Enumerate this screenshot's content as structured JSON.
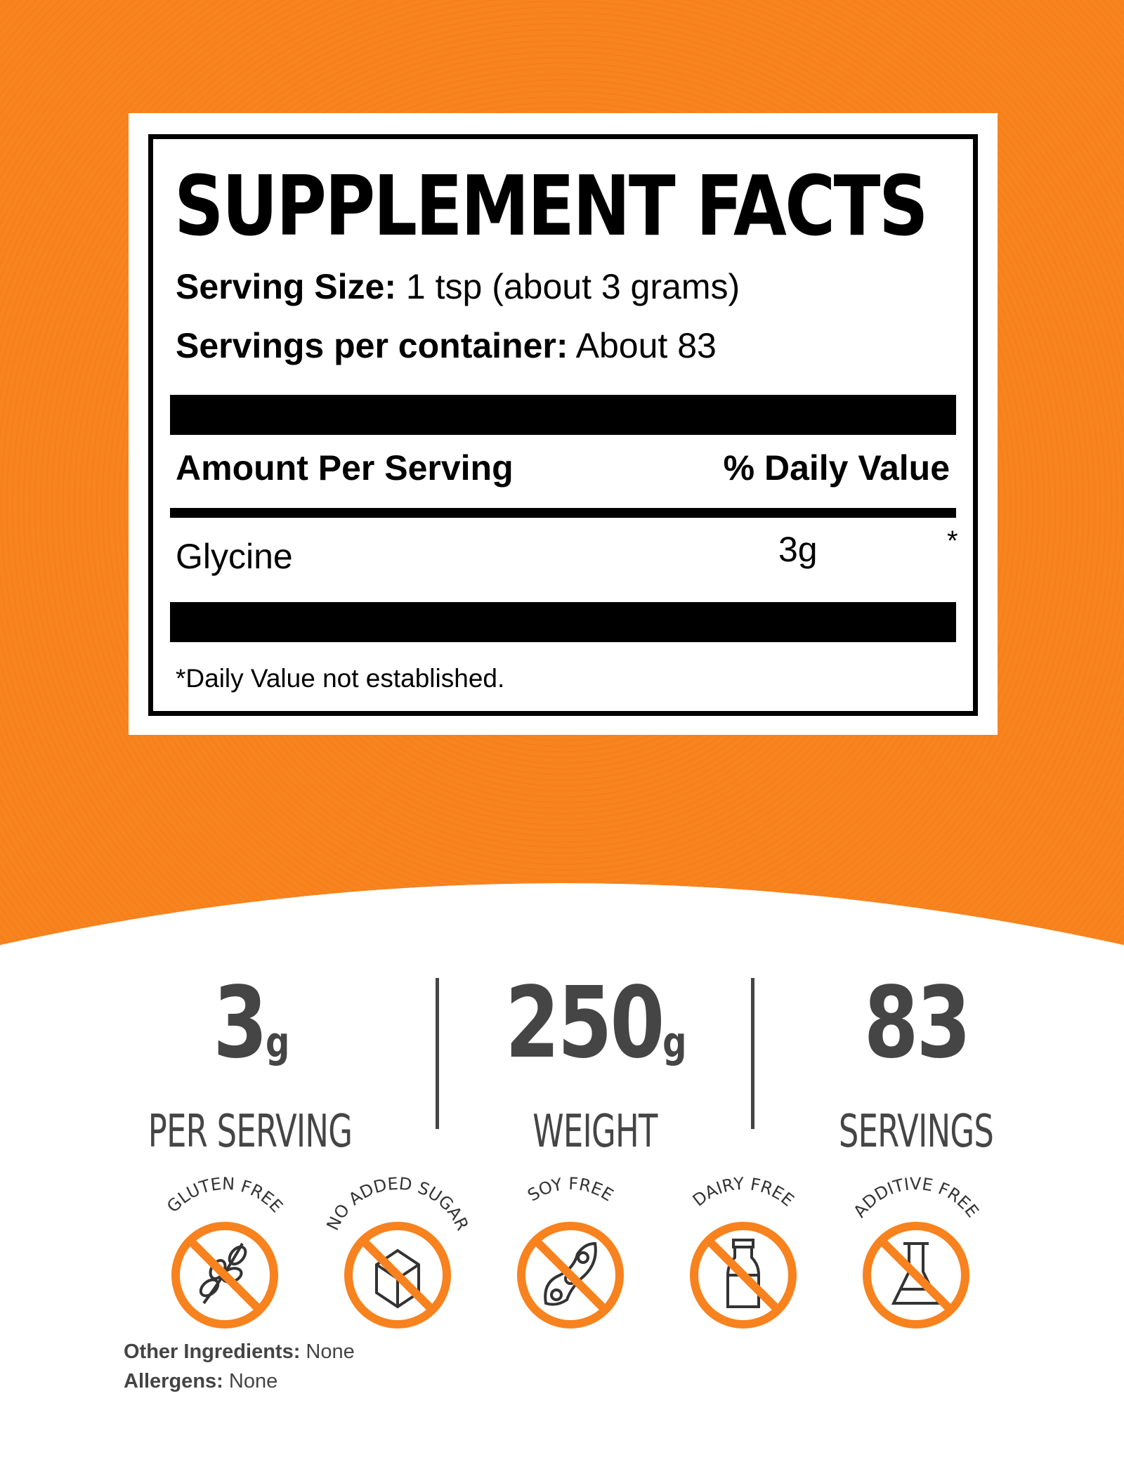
{
  "facts": {
    "title": "SUPPLEMENT FACTS",
    "serving_size_label": "Serving Size:",
    "serving_size_value": "1 tsp (about 3 grams)",
    "servings_label": "Servings per container:",
    "servings_value": "About 83",
    "amount_header": "Amount Per Serving",
    "dv_header": "% Daily Value",
    "ingredients": [
      {
        "name": "Glycine",
        "amount": "3g",
        "dv": "*"
      }
    ],
    "footnote": "*Daily Value not established."
  },
  "stats": [
    {
      "value": "3",
      "unit": "g",
      "label": "PER SERVING"
    },
    {
      "value": "250",
      "unit": "g",
      "label": "WEIGHT"
    },
    {
      "value": "83",
      "unit": "",
      "label": "SERVINGS"
    }
  ],
  "badges": [
    {
      "label": "GLUTEN FREE",
      "icon": "wheat-icon"
    },
    {
      "label": "NO ADDED SUGAR",
      "icon": "sugar-cube-icon"
    },
    {
      "label": "SOY FREE",
      "icon": "soybean-icon"
    },
    {
      "label": "DAIRY FREE",
      "icon": "milk-bottle-icon"
    },
    {
      "label": "ADDITIVE FREE",
      "icon": "flask-icon"
    }
  ],
  "other_ingredients_label": "Other Ingredients:",
  "other_ingredients_value": "None",
  "allergens_label": "Allergens:",
  "allergens_value": "None",
  "colors": {
    "orange": "#F7821E",
    "text_gray": "#454545"
  }
}
